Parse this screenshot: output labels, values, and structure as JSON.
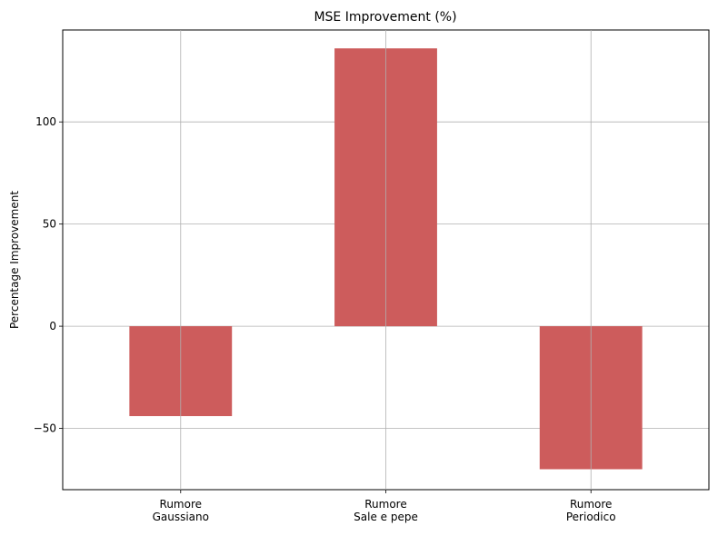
{
  "chart_data": {
    "type": "bar",
    "title": "MSE Improvement (%)",
    "xlabel": "",
    "ylabel": "Percentage Improvement",
    "categories": [
      [
        "Rumore",
        "Gaussiano"
      ],
      [
        "Rumore",
        "Sale e pepe"
      ],
      [
        "Rumore",
        "Periodico"
      ]
    ],
    "values": [
      -44,
      136,
      -70
    ],
    "ylim": [
      -80,
      145
    ],
    "yticks": [
      -50,
      0,
      50,
      100
    ],
    "ytick_labels": [
      "−50",
      "0",
      "50",
      "100"
    ],
    "grid": true,
    "bar_color": "#cd5c5c",
    "grid_color": "#b0b0b0"
  }
}
